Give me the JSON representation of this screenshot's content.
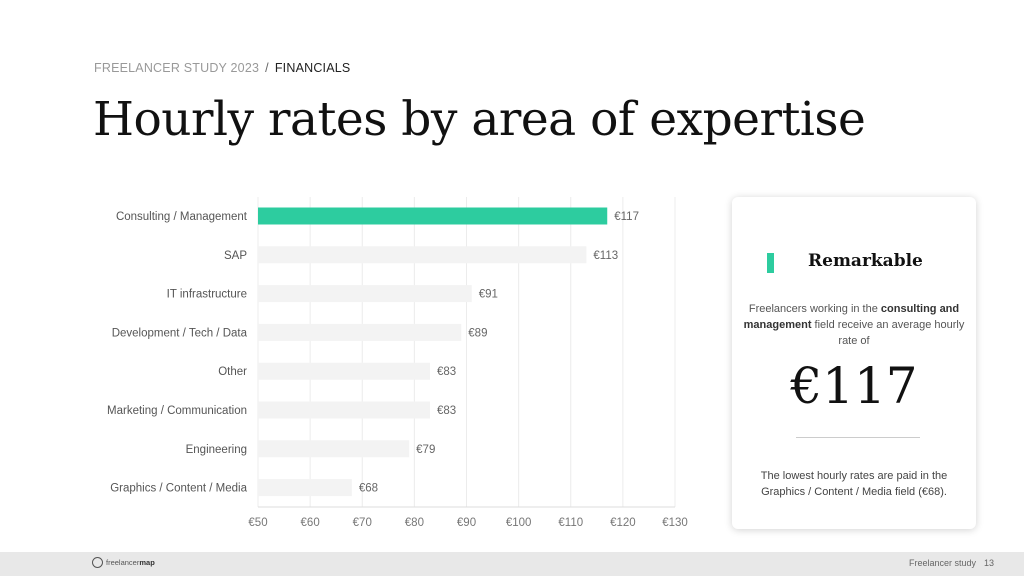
{
  "breadcrumb": {
    "section": "FREELANCER STUDY 2023",
    "separator": "/",
    "current": "FINANCIALS"
  },
  "title": "Hourly rates by area of expertise",
  "colors": {
    "accent": "#2dcc9f",
    "bar_muted": "#f3f3f3"
  },
  "chart_data": {
    "type": "bar",
    "orientation": "horizontal",
    "categories": [
      "Consulting / Management",
      "SAP",
      "IT infrastructure",
      "Development / Tech / Data",
      "Other",
      "Marketing / Communication",
      "Engineering",
      "Graphics / Content / Media"
    ],
    "values": [
      117,
      113,
      91,
      89,
      83,
      83,
      79,
      68
    ],
    "value_labels": [
      "€117",
      "€113",
      "€91",
      "€89",
      "€83",
      "€83",
      "€79",
      "€68"
    ],
    "highlight_index": 0,
    "xlim": [
      50,
      130
    ],
    "xticks": [
      50,
      60,
      70,
      80,
      90,
      100,
      110,
      120,
      130
    ],
    "xtick_labels": [
      "€50",
      "€60",
      "€70",
      "€80",
      "€90",
      "€100",
      "€110",
      "€120",
      "€130"
    ],
    "title": "",
    "xlabel": "",
    "ylabel": "",
    "grid": true
  },
  "card": {
    "heading": "Remarkable",
    "text_before": "Freelancers working in the ",
    "text_bold": "consulting and management",
    "text_after": " field receive  an average hourly rate of",
    "big_value": "€117",
    "footnote": "The lowest hourly rates are paid in the Graphics / Content / Media field (€68)."
  },
  "footer": {
    "logo_light": "freelancer",
    "logo_bold": "map",
    "label": "Freelancer study",
    "page": "13"
  }
}
